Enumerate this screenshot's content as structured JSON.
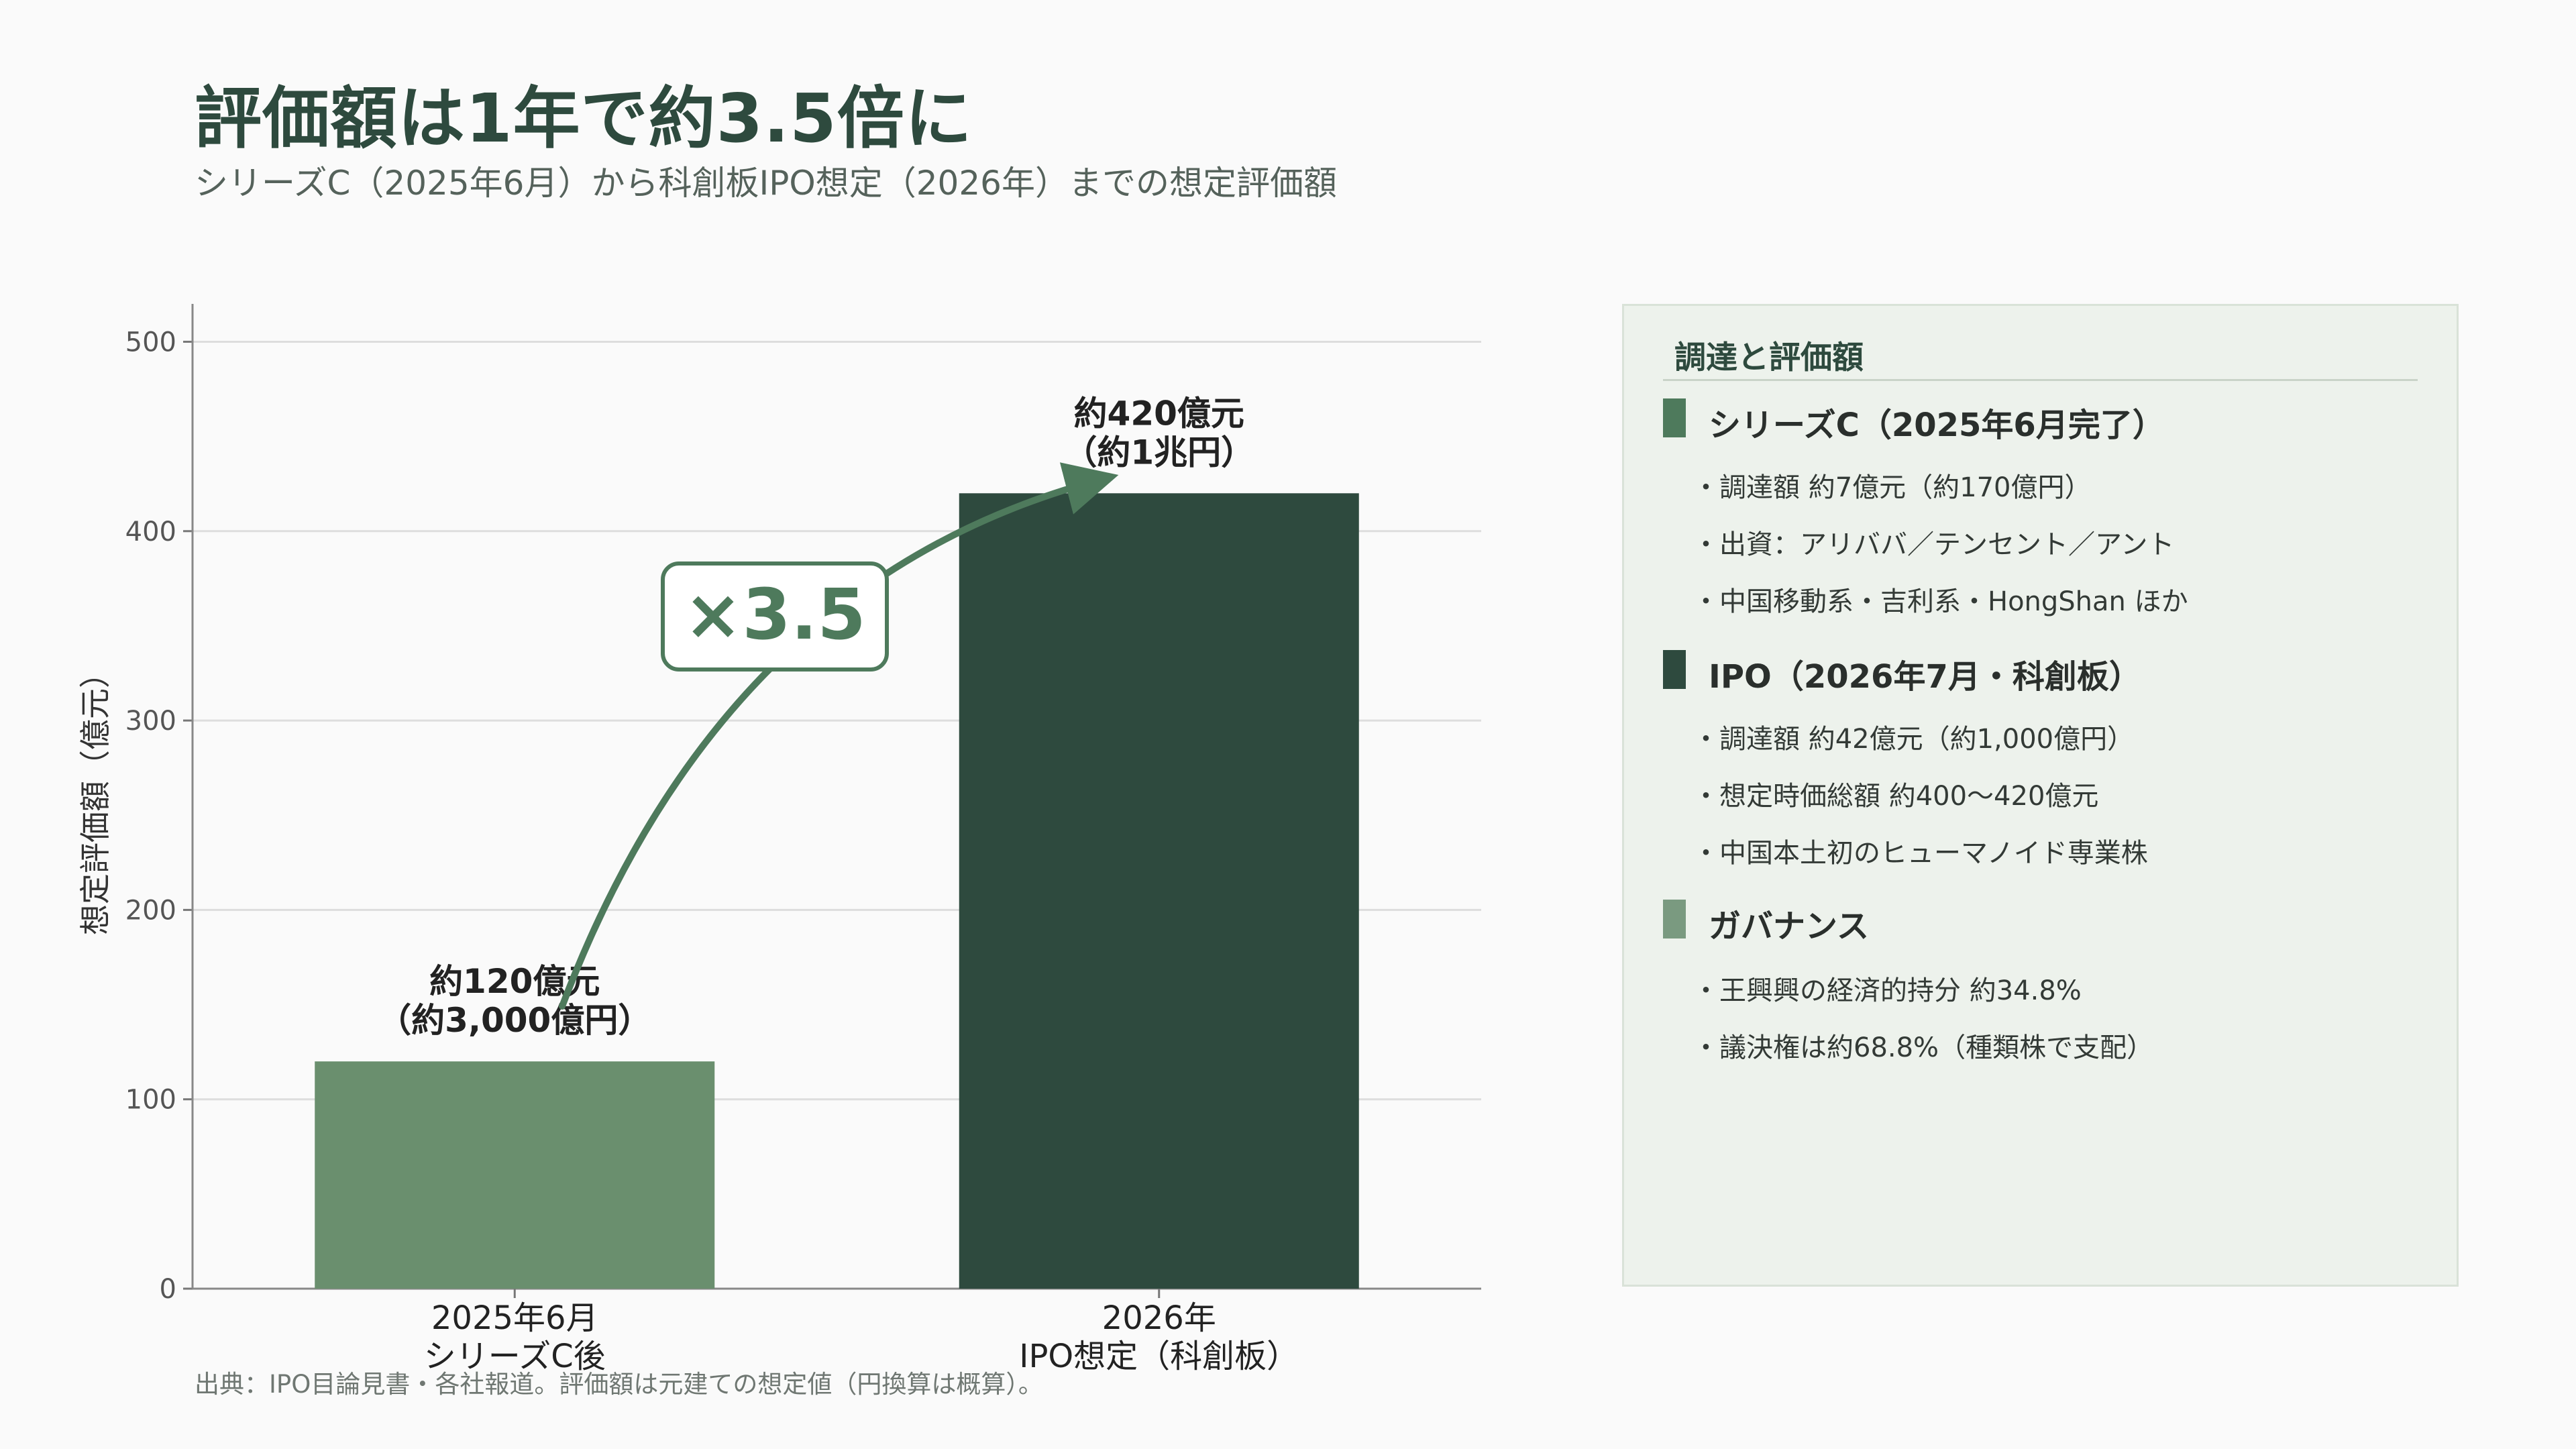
{
  "title": "評価額は1年で約3.5倍に",
  "subtitle": "シリーズC（2025年6月）から科創板IPO想定（2026年）までの想定評価額",
  "colors": {
    "bar_light": "#6a8f6e",
    "bar_dark": "#2e4a3e",
    "accent": "#4e7a5c",
    "grid": "#dddddd"
  },
  "chart_data": {
    "type": "bar",
    "categories": [
      "2025年6月\nシリーズC後",
      "2026年\nIPO想定（科創板）"
    ],
    "values": [
      120,
      420
    ],
    "data_labels": [
      "約120億元\n（約3,000億円）",
      "約420億元\n（約1兆円）"
    ],
    "ylabel": "想定評価額（億元）",
    "xlabel": "",
    "ylim": [
      0,
      520
    ],
    "yticks": [
      0,
      100,
      200,
      300,
      400,
      500
    ],
    "grid": true,
    "annotation": "×3.5"
  },
  "panel": {
    "title": "調達と評価額",
    "sections": [
      {
        "heading": "シリーズC（2025年6月完了）",
        "marker_color": "#4e7a5c",
        "bullets": [
          "・調達額 約7億元（約170億円）",
          "・出資：アリババ／テンセント／アント",
          "・中国移動系・吉利系・HongShan ほか"
        ]
      },
      {
        "heading": "IPO（2026年7月・科創板）",
        "marker_color": "#2e4a3e",
        "bullets": [
          "・調達額 約42億元（約1,000億円）",
          "・想定時価総額 約400〜420億元",
          "・中国本土初のヒューマノイド専業株"
        ]
      },
      {
        "heading": "ガバナンス",
        "marker_color": "#7a9a80",
        "bullets": [
          "・王興興の経済的持分 約34.8%",
          "・議決権は約68.8%（種類株で支配）"
        ]
      }
    ]
  },
  "source": "出典：IPO目論見書・各社報道。評価額は元建ての想定値（円換算は概算）。"
}
